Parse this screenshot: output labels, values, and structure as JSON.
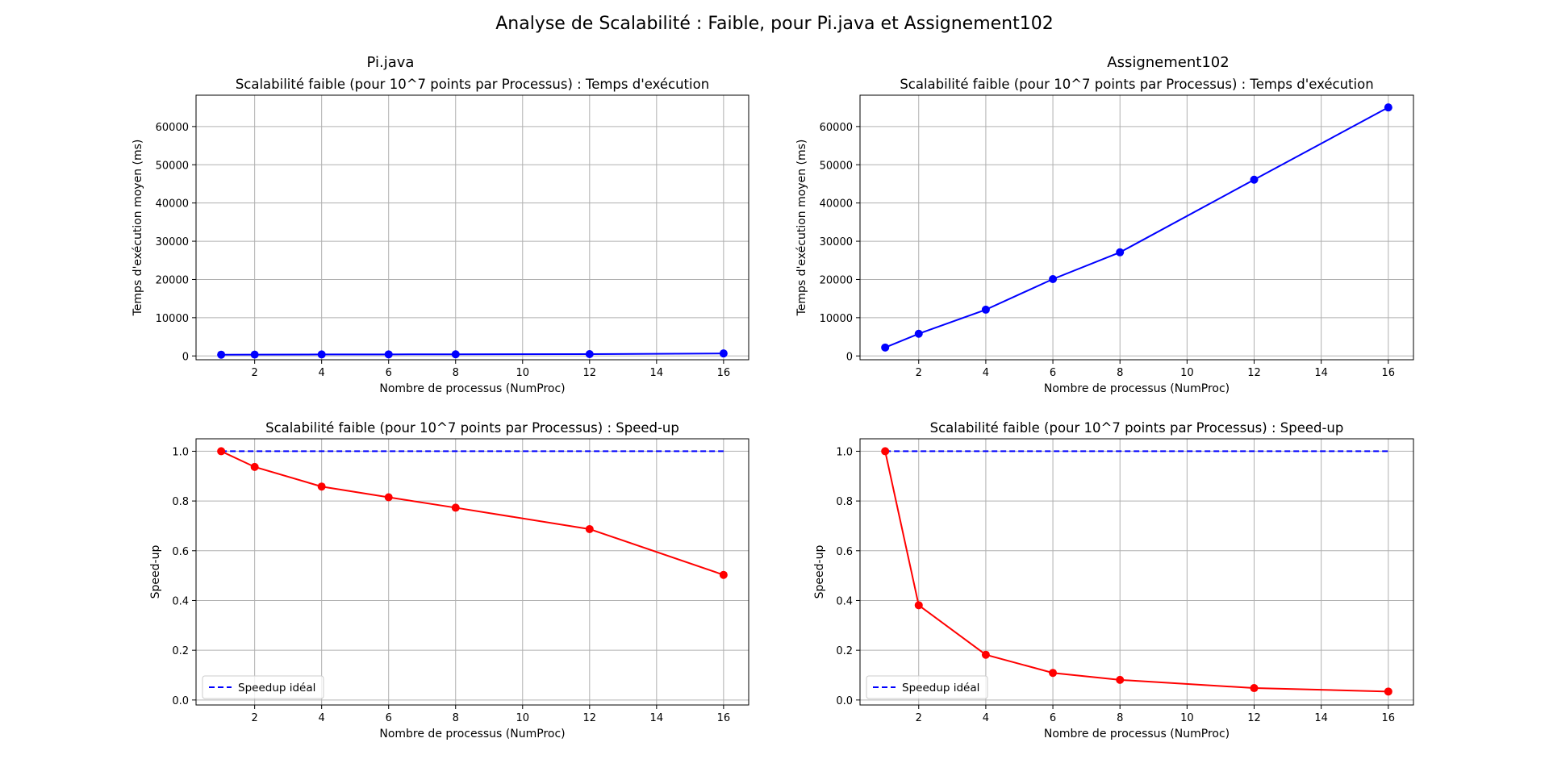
{
  "figure": {
    "title": "Analyse de Scalabilité : Faible, pour Pi.java et Assignement102",
    "column_titles": [
      "Pi.java",
      "Assignement102"
    ]
  },
  "colors": {
    "time_series": "#0000ff",
    "speedup_series": "#ff0000",
    "ideal_line": "#0000ff",
    "grid": "#b0b0b0"
  },
  "chart_data": [
    {
      "type": "line",
      "program": "Pi.java",
      "title": "Scalabilité faible (pour 10^7 points par Processus) : Temps d'exécution",
      "xlabel": "Nombre de processus (NumProc)",
      "ylabel": "Temps d'exécution moyen (ms)",
      "x": [
        1,
        2,
        4,
        6,
        8,
        12,
        16
      ],
      "xlim": [
        0.25,
        16.75
      ],
      "ylim": [
        -1000,
        68200
      ],
      "xticks": [
        2,
        4,
        6,
        8,
        10,
        12,
        14,
        16
      ],
      "yticks": [
        0,
        10000,
        20000,
        30000,
        40000,
        50000,
        60000
      ],
      "grid": true,
      "series": [
        {
          "values": [
            330,
            350,
            385,
            405,
            425,
            480,
            650
          ],
          "style": "solid",
          "marker": "circle",
          "color": "#0000ff"
        }
      ]
    },
    {
      "type": "line",
      "program": "Assignement102",
      "title": "Scalabilité faible (pour 10^7 points par Processus) : Temps d'exécution",
      "xlabel": "Nombre de processus (NumProc)",
      "ylabel": "Temps d'exécution moyen (ms)",
      "x": [
        1,
        2,
        4,
        6,
        8,
        12,
        16
      ],
      "xlim": [
        0.25,
        16.75
      ],
      "ylim": [
        -1000,
        68200
      ],
      "xticks": [
        2,
        4,
        6,
        8,
        10,
        12,
        14,
        16
      ],
      "yticks": [
        0,
        10000,
        20000,
        30000,
        40000,
        50000,
        60000
      ],
      "grid": true,
      "series": [
        {
          "values": [
            2200,
            5800,
            12100,
            20100,
            27100,
            46100,
            65000
          ],
          "style": "solid",
          "marker": "circle",
          "color": "#0000ff"
        }
      ]
    },
    {
      "type": "line",
      "program": "Pi.java",
      "title": "Scalabilité faible (pour 10^7 points par Processus) : Speed-up",
      "xlabel": "Nombre de processus (NumProc)",
      "ylabel": "Speed-up",
      "x": [
        1,
        2,
        4,
        6,
        8,
        12,
        16
      ],
      "xlim": [
        0.25,
        16.75
      ],
      "ylim": [
        -0.02,
        1.05
      ],
      "xticks": [
        2,
        4,
        6,
        8,
        10,
        12,
        14,
        16
      ],
      "yticks": [
        0.0,
        0.2,
        0.4,
        0.6,
        0.8,
        1.0
      ],
      "grid": true,
      "legend": "lower-left",
      "series": [
        {
          "values": [
            1.0,
            0.937,
            0.858,
            0.815,
            0.773,
            0.687,
            0.503
          ],
          "style": "solid",
          "marker": "circle",
          "color": "#ff0000"
        },
        {
          "name": "Speedup idéal",
          "values": [
            1,
            1,
            1,
            1,
            1,
            1,
            1
          ],
          "style": "dashed",
          "marker": "none",
          "color": "#0000ff"
        }
      ]
    },
    {
      "type": "line",
      "program": "Assignement102",
      "title": "Scalabilité faible (pour 10^7 points par Processus) : Speed-up",
      "xlabel": "Nombre de processus (NumProc)",
      "ylabel": "Speed-up",
      "x": [
        1,
        2,
        4,
        6,
        8,
        12,
        16
      ],
      "xlim": [
        0.25,
        16.75
      ],
      "ylim": [
        -0.02,
        1.05
      ],
      "xticks": [
        2,
        4,
        6,
        8,
        10,
        12,
        14,
        16
      ],
      "yticks": [
        0.0,
        0.2,
        0.4,
        0.6,
        0.8,
        1.0
      ],
      "grid": true,
      "legend": "lower-left",
      "series": [
        {
          "values": [
            1.0,
            0.381,
            0.182,
            0.109,
            0.081,
            0.048,
            0.034
          ],
          "style": "solid",
          "marker": "circle",
          "color": "#ff0000"
        },
        {
          "name": "Speedup idéal",
          "values": [
            1,
            1,
            1,
            1,
            1,
            1,
            1
          ],
          "style": "dashed",
          "marker": "none",
          "color": "#0000ff"
        }
      ]
    }
  ]
}
